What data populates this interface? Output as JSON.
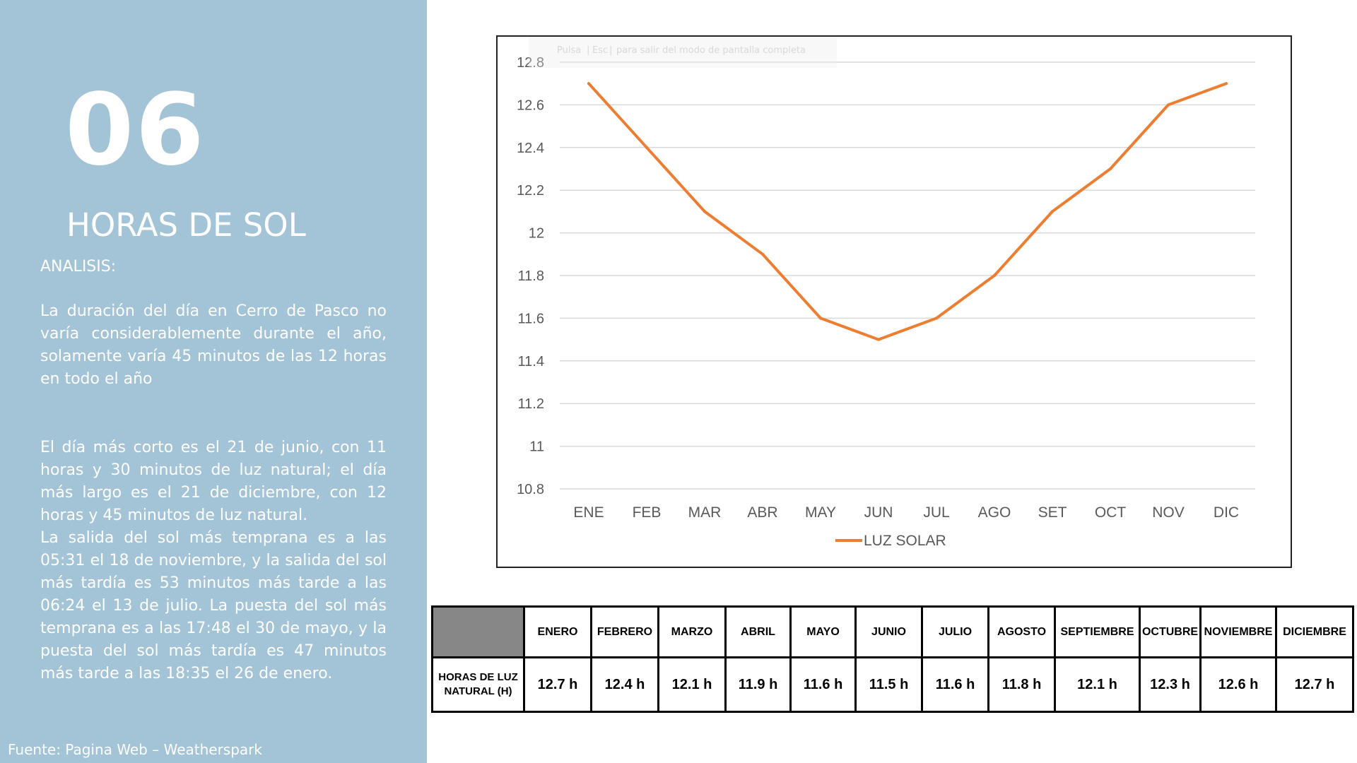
{
  "panel": {
    "number": "06",
    "title": "HORAS DE SOL",
    "analysis_label": "ANALISIS:",
    "paragraph_1": "La duración del día en Cerro de Pasco no varía considerablemente durante el año, solamente varía 45 minutos de las 12 horas en todo el año",
    "paragraph_2": "El día más corto es el 21 de junio, con 11 horas y 30 minutos de luz natural; el día más largo es el 21 de diciembre, con 12 horas y 45 minutos de luz natural.",
    "paragraph_3": "La salida del sol más temprana es a las 05:31 el 18 de noviembre, y la salida del sol más tardía es 53 minutos más tarde a las 06:24 el 13 de julio. La puesta del sol más temprana es a las 17:48 el 30 de mayo, y la puesta del sol más tardía es 47 minutos más tarde a las 18:35 el 26 de enero.",
    "source": "Fuente: Pagina Web – Weatherspark"
  },
  "overlay": {
    "key_1": "Pulsa",
    "key_2": "Esc",
    "message": "para salir del modo de pantalla completa"
  },
  "chart_data": {
    "type": "line",
    "title": "",
    "categories": [
      "ENE",
      "FEB",
      "MAR",
      "ABR",
      "MAY",
      "JUN",
      "JUL",
      "AGO",
      "SET",
      "OCT",
      "NOV",
      "DIC"
    ],
    "series": [
      {
        "name": "LUZ SOLAR",
        "values": [
          12.7,
          12.4,
          12.1,
          11.9,
          11.6,
          11.5,
          11.6,
          11.8,
          12.1,
          12.3,
          12.6,
          12.7
        ]
      }
    ],
    "ylim": [
      10.8,
      12.8
    ],
    "yticks": [
      "10.8",
      "11",
      "11.2",
      "11.4",
      "11.6",
      "11.8",
      "12",
      "12.2",
      "12.4",
      "12.6",
      "12.8"
    ],
    "xlabel": "",
    "ylabel": "",
    "grid": true,
    "legend": "bottom",
    "line_color": "#ed7d31"
  },
  "table": {
    "row_label": "HORAS DE LUZ NATURAL (H)",
    "columns": [
      "ENERO",
      "FEBRERO",
      "MARZO",
      "ABRIL",
      "MAYO",
      "JUNIO",
      "JULIO",
      "AGOSTO",
      "SEPTIEMBRE",
      "OCTUBRE",
      "NOVIEMBRE",
      "DICIEMBRE"
    ],
    "values": [
      "12.7 h",
      "12.4 h",
      "12.1 h",
      "11.9 h",
      "11.6 h",
      "11.5 h",
      "11.6 h",
      "11.8 h",
      "12.1 h",
      "12.3 h",
      "12.6 h",
      "12.7 h"
    ]
  },
  "colors": {
    "panel_bg": "#a3c3d7",
    "corner_cell": "#878787"
  }
}
